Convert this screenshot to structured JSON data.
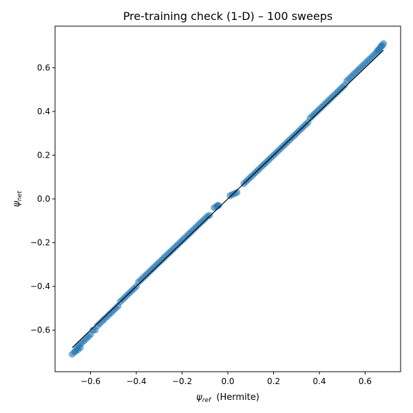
{
  "chart_data": {
    "type": "scatter",
    "title": "Pre-training check (1-D) –  100 sweeps",
    "xlabel": {
      "symbol": "ψ",
      "sub": "ref",
      "suffix": "  (Hermite)"
    },
    "ylabel": {
      "symbol": "ψ",
      "sub": "net"
    },
    "xlim": [
      -0.755,
      0.755
    ],
    "ylim": [
      -0.79,
      0.79
    ],
    "xticks": [
      -0.6,
      -0.4,
      -0.2,
      0.0,
      0.2,
      0.4,
      0.6
    ],
    "xtick_labels": [
      "−0.6",
      "−0.4",
      "−0.2",
      "0.0",
      "0.2",
      "0.4",
      "0.6"
    ],
    "yticks": [
      -0.6,
      -0.4,
      -0.2,
      0.0,
      0.2,
      0.4,
      0.6
    ],
    "ytick_labels": [
      "−0.6",
      "−0.4",
      "−0.2",
      "0.0",
      "0.2",
      "0.4",
      "0.6"
    ],
    "grid": false,
    "legend": "none",
    "point_color": "#1f77b4",
    "point_alpha": 0.6,
    "reference_line": {
      "color": "#000000",
      "x": [
        -0.68,
        0.68
      ],
      "y": [
        -0.68,
        0.68
      ]
    },
    "series": [
      {
        "points": [
          [
            -0.68,
            -0.71
          ],
          [
            -0.67,
            -0.7
          ],
          [
            -0.665,
            -0.695
          ],
          [
            -0.66,
            -0.68
          ],
          [
            -0.655,
            -0.69
          ],
          [
            -0.65,
            -0.67
          ],
          [
            -0.645,
            -0.68
          ],
          [
            -0.64,
            -0.66
          ],
          [
            -0.63,
            -0.65
          ],
          [
            -0.62,
            -0.64
          ],
          [
            -0.61,
            -0.63
          ],
          [
            -0.6,
            -0.62
          ],
          [
            -0.59,
            -0.6
          ],
          [
            -0.58,
            -0.6
          ],
          [
            -0.57,
            -0.58
          ],
          [
            -0.56,
            -0.57
          ],
          [
            -0.55,
            -0.56
          ],
          [
            -0.54,
            -0.55
          ],
          [
            -0.53,
            -0.54
          ],
          [
            -0.52,
            -0.53
          ],
          [
            -0.51,
            -0.52
          ],
          [
            -0.5,
            -0.51
          ],
          [
            -0.49,
            -0.5
          ],
          [
            -0.48,
            -0.49
          ],
          [
            -0.47,
            -0.47
          ],
          [
            -0.46,
            -0.46
          ],
          [
            -0.45,
            -0.45
          ],
          [
            -0.44,
            -0.44
          ],
          [
            -0.43,
            -0.43
          ],
          [
            -0.42,
            -0.42
          ],
          [
            -0.41,
            -0.41
          ],
          [
            -0.4,
            -0.4
          ],
          [
            -0.39,
            -0.38
          ],
          [
            -0.38,
            -0.37
          ],
          [
            -0.37,
            -0.36
          ],
          [
            -0.36,
            -0.35
          ],
          [
            -0.35,
            -0.34
          ],
          [
            -0.34,
            -0.33
          ],
          [
            -0.33,
            -0.32
          ],
          [
            -0.32,
            -0.31
          ],
          [
            -0.31,
            -0.3
          ],
          [
            -0.3,
            -0.29
          ],
          [
            -0.29,
            -0.28
          ],
          [
            -0.28,
            -0.27
          ],
          [
            -0.27,
            -0.26
          ],
          [
            -0.26,
            -0.25
          ],
          [
            -0.25,
            -0.24
          ],
          [
            -0.24,
            -0.23
          ],
          [
            -0.23,
            -0.22
          ],
          [
            -0.22,
            -0.21
          ],
          [
            -0.21,
            -0.2
          ],
          [
            -0.2,
            -0.19
          ],
          [
            -0.19,
            -0.18
          ],
          [
            -0.18,
            -0.17
          ],
          [
            -0.17,
            -0.16
          ],
          [
            -0.16,
            -0.15
          ],
          [
            -0.15,
            -0.14
          ],
          [
            -0.14,
            -0.13
          ],
          [
            -0.13,
            -0.12
          ],
          [
            -0.12,
            -0.11
          ],
          [
            -0.11,
            -0.1
          ],
          [
            -0.1,
            -0.09
          ],
          [
            -0.09,
            -0.08
          ],
          [
            -0.08,
            -0.075
          ],
          [
            -0.06,
            -0.04
          ],
          [
            -0.05,
            -0.035
          ],
          [
            -0.045,
            -0.03
          ],
          [
            -0.04,
            -0.03
          ],
          [
            0.01,
            0.015
          ],
          [
            0.02,
            0.02
          ],
          [
            0.03,
            0.025
          ],
          [
            0.04,
            0.03
          ],
          [
            0.07,
            0.07
          ],
          [
            0.08,
            0.08
          ],
          [
            0.09,
            0.09
          ],
          [
            0.1,
            0.1
          ],
          [
            0.11,
            0.11
          ],
          [
            0.12,
            0.12
          ],
          [
            0.13,
            0.13
          ],
          [
            0.14,
            0.14
          ],
          [
            0.15,
            0.15
          ],
          [
            0.16,
            0.16
          ],
          [
            0.17,
            0.17
          ],
          [
            0.18,
            0.18
          ],
          [
            0.19,
            0.19
          ],
          [
            0.2,
            0.2
          ],
          [
            0.21,
            0.21
          ],
          [
            0.22,
            0.22
          ],
          [
            0.23,
            0.23
          ],
          [
            0.24,
            0.24
          ],
          [
            0.25,
            0.25
          ],
          [
            0.26,
            0.26
          ],
          [
            0.27,
            0.27
          ],
          [
            0.28,
            0.28
          ],
          [
            0.29,
            0.29
          ],
          [
            0.3,
            0.3
          ],
          [
            0.31,
            0.31
          ],
          [
            0.32,
            0.32
          ],
          [
            0.33,
            0.33
          ],
          [
            0.34,
            0.34
          ],
          [
            0.35,
            0.35
          ],
          [
            0.36,
            0.37
          ],
          [
            0.37,
            0.38
          ],
          [
            0.38,
            0.39
          ],
          [
            0.39,
            0.4
          ],
          [
            0.4,
            0.41
          ],
          [
            0.41,
            0.42
          ],
          [
            0.42,
            0.43
          ],
          [
            0.43,
            0.44
          ],
          [
            0.44,
            0.45
          ],
          [
            0.45,
            0.46
          ],
          [
            0.46,
            0.47
          ],
          [
            0.47,
            0.48
          ],
          [
            0.48,
            0.49
          ],
          [
            0.49,
            0.5
          ],
          [
            0.5,
            0.51
          ],
          [
            0.51,
            0.52
          ],
          [
            0.52,
            0.54
          ],
          [
            0.53,
            0.55
          ],
          [
            0.54,
            0.56
          ],
          [
            0.55,
            0.57
          ],
          [
            0.56,
            0.58
          ],
          [
            0.57,
            0.59
          ],
          [
            0.58,
            0.6
          ],
          [
            0.59,
            0.61
          ],
          [
            0.6,
            0.62
          ],
          [
            0.61,
            0.63
          ],
          [
            0.62,
            0.64
          ],
          [
            0.63,
            0.65
          ],
          [
            0.64,
            0.66
          ],
          [
            0.65,
            0.67
          ],
          [
            0.655,
            0.68
          ],
          [
            0.66,
            0.68
          ],
          [
            0.665,
            0.69
          ],
          [
            0.67,
            0.7
          ],
          [
            0.675,
            0.7
          ],
          [
            0.68,
            0.71
          ]
        ]
      }
    ]
  }
}
